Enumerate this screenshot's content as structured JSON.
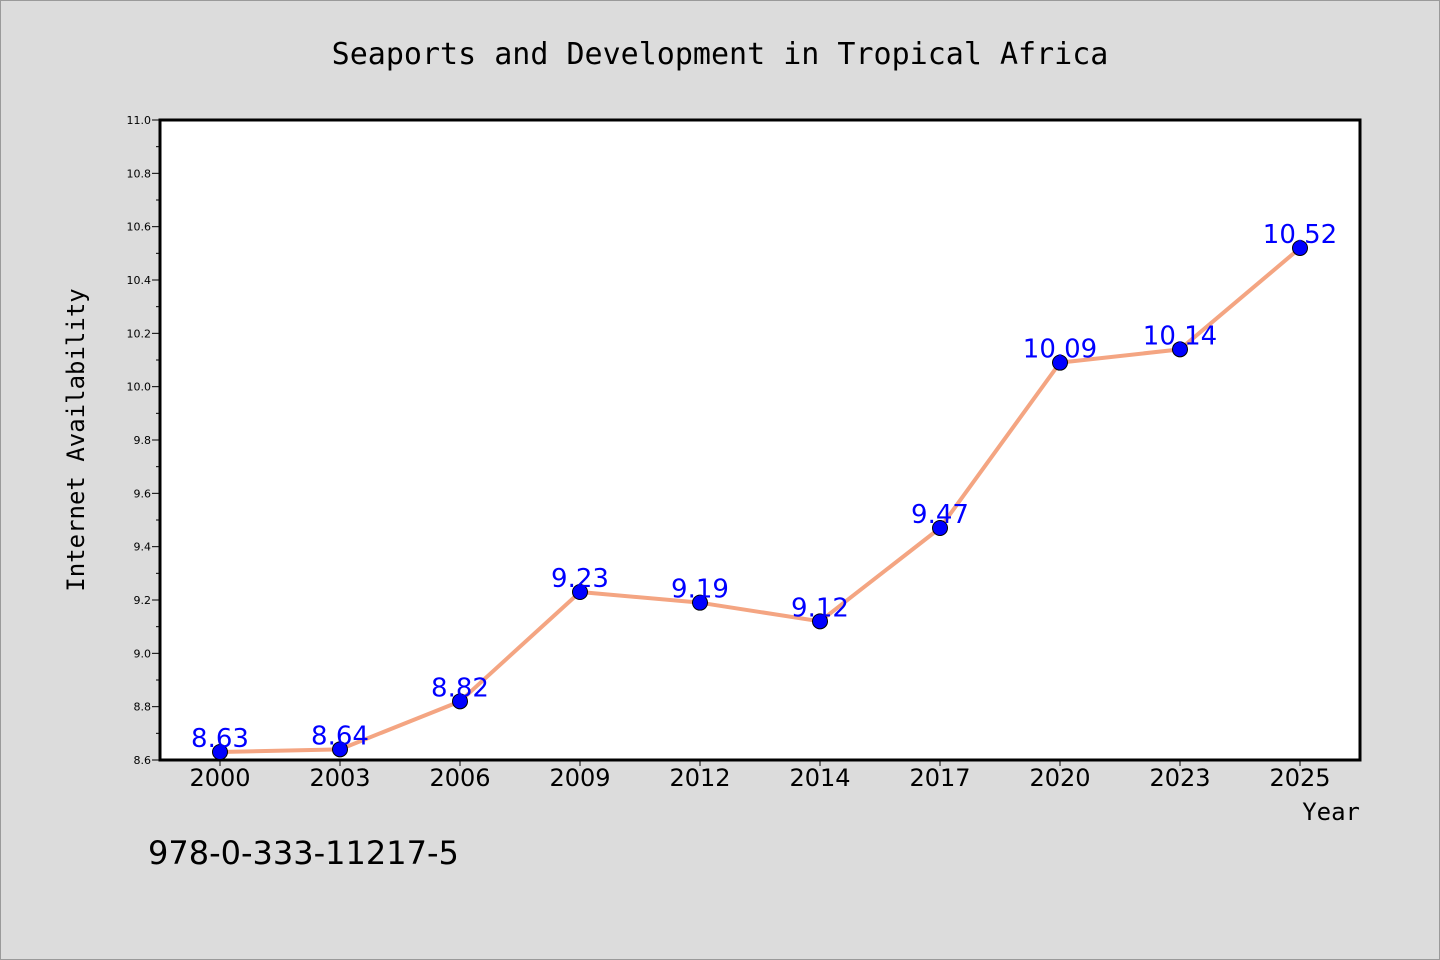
{
  "chart_data": {
    "type": "line",
    "title": "Seaports and Development in Tropical Africa",
    "xlabel": "Year",
    "ylabel": "Internet Availability",
    "categories": [
      "2000",
      "2003",
      "2006",
      "2009",
      "2012",
      "2014",
      "2017",
      "2020",
      "2023",
      "2025"
    ],
    "series": [
      {
        "values": [
          8.63,
          8.64,
          8.82,
          9.23,
          9.19,
          9.12,
          9.47,
          10.09,
          10.14,
          10.52
        ],
        "labels": [
          "8.63",
          "8.64",
          "8.82",
          "9.23",
          "9.19",
          "9.12",
          "9.47",
          "10.09",
          "10.14",
          "10.52"
        ],
        "line_color": "#f4a582",
        "marker_color": "#0000ff"
      }
    ],
    "ylim": [
      8.6,
      11.0
    ],
    "yticks": [
      "8.6",
      "8.8",
      "9.0",
      "9.2",
      "9.4",
      "9.6",
      "9.8",
      "10.0",
      "10.2",
      "10.4",
      "10.6",
      "10.8",
      "11.0"
    ],
    "grid": false,
    "legend": "none"
  },
  "footer": {
    "isbn": "978-0-333-11217-5"
  },
  "colors": {
    "background": "#dcdcdc",
    "plot_background": "#ffffff",
    "line": "#f4a582",
    "marker": "#0000ff",
    "label": "#0000ff"
  }
}
